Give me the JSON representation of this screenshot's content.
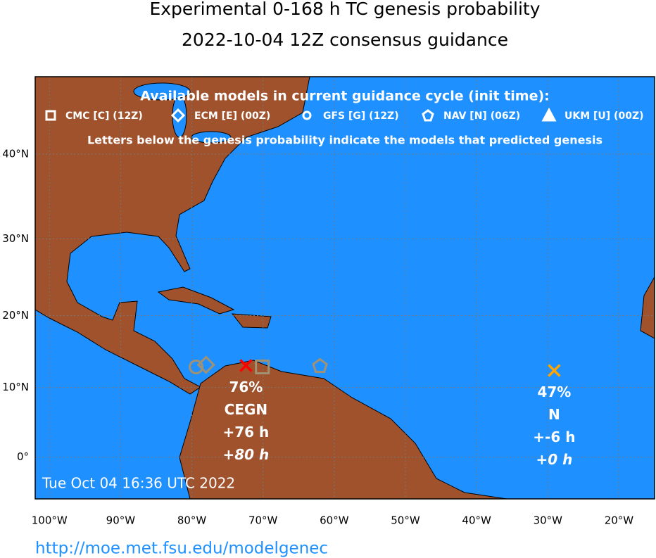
{
  "header": {
    "title": "Experimental 0-168 h TC genesis probability",
    "subtitle": "2022-10-04 12Z consensus guidance"
  },
  "map": {
    "xlim": [
      -102,
      -15
    ],
    "ylim": [
      -6,
      48
    ],
    "xticks": [
      {
        "value": -100,
        "label": "100°W"
      },
      {
        "value": -90,
        "label": "90°W"
      },
      {
        "value": -80,
        "label": "80°W"
      },
      {
        "value": -70,
        "label": "70°W"
      },
      {
        "value": -60,
        "label": "60°W"
      },
      {
        "value": -50,
        "label": "50°W"
      },
      {
        "value": -40,
        "label": "40°W"
      },
      {
        "value": -30,
        "label": "30°W"
      },
      {
        "value": -20,
        "label": "20°W"
      }
    ],
    "yticks": [
      {
        "value": 0,
        "label": "0°"
      },
      {
        "value": 10,
        "label": "10°N"
      },
      {
        "value": 20,
        "label": "20°N"
      },
      {
        "value": 30,
        "label": "30°N"
      },
      {
        "value": 40,
        "label": "40°N"
      }
    ]
  },
  "legend": {
    "header": "Available models in current guidance cycle (init time):",
    "entries": [
      "CMC [C] (12Z)",
      "ECM [E] (00Z)",
      "GFS [G] (12Z)",
      "NAV [N] (06Z)",
      "UKM [U] (00Z)"
    ],
    "note": "Letters below the genesis probability indicate the models that predicted genesis"
  },
  "model_markers": [
    {
      "shape": "circle",
      "lon": -79.4,
      "lat": 12.9,
      "color": "#a09274"
    },
    {
      "shape": "diamond",
      "lon": -78.0,
      "lat": 13.2,
      "color": "#a09274"
    },
    {
      "shape": "square",
      "lon": -70.1,
      "lat": 12.9,
      "color": "#a09274"
    },
    {
      "shape": "pentagon",
      "lon": -62.0,
      "lat": 13.0,
      "color": "#a09274"
    }
  ],
  "systems": [
    {
      "lon": -72.4,
      "lat": 13.1,
      "color": "#ff0000",
      "probability": "76%",
      "models": "CEGN",
      "time_first": "+76 h",
      "time_second": "+80 h"
    },
    {
      "lon": -29.1,
      "lat": 12.4,
      "color": "#ffa500",
      "probability": "47%",
      "models": "N",
      "time_first": "+-6 h",
      "time_second": "+0 h"
    }
  ],
  "timestamp": "Tue Oct 04 16:36 UTC 2022",
  "url": "http://moe.met.fsu.edu/modelgenec"
}
